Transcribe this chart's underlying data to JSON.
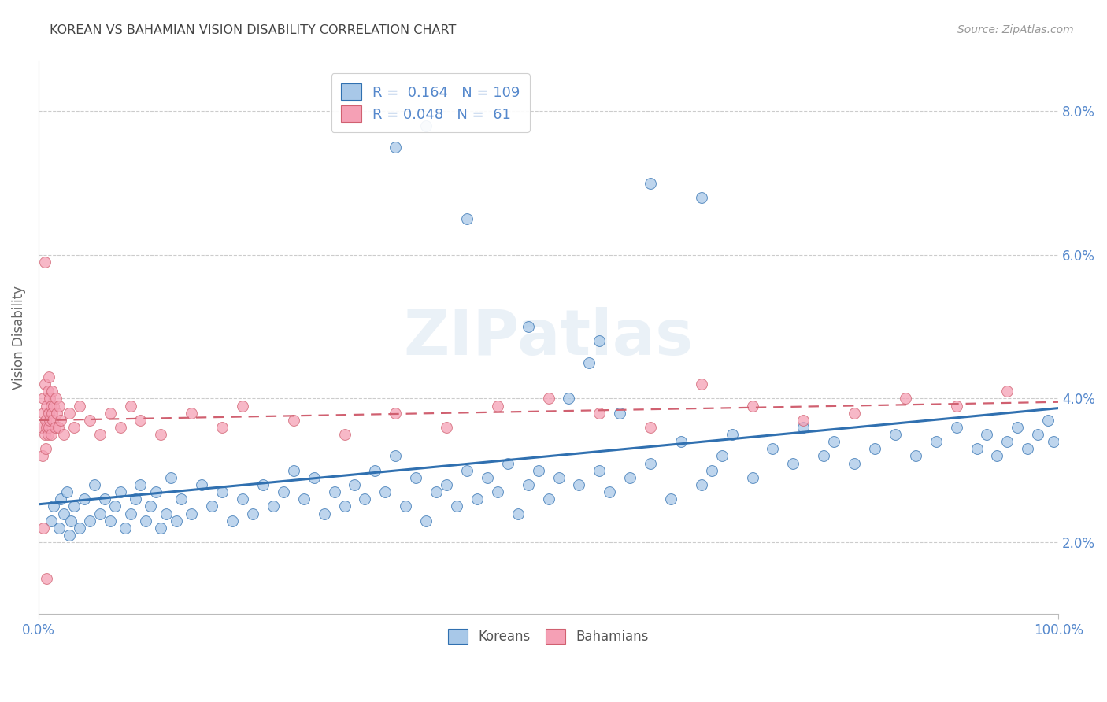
{
  "title": "KOREAN VS BAHAMIAN VISION DISABILITY CORRELATION CHART",
  "source": "Source: ZipAtlas.com",
  "ylabel": "Vision Disability",
  "xlim": [
    0.0,
    100.0
  ],
  "ylim": [
    1.0,
    8.7
  ],
  "xtick_positions": [
    0.0,
    100.0
  ],
  "xtick_labels": [
    "0.0%",
    "100.0%"
  ],
  "ytick_positions": [
    2.0,
    4.0,
    6.0,
    8.0
  ],
  "ytick_labels": [
    "2.0%",
    "4.0%",
    "6.0%",
    "8.0%"
  ],
  "korean_R": 0.164,
  "korean_N": 109,
  "bahamian_R": 0.048,
  "bahamian_N": 61,
  "korean_color": "#a8c8e8",
  "bahamian_color": "#f5a0b5",
  "korean_line_color": "#3070b0",
  "bahamian_line_color": "#d06070",
  "legend_label_korean": "Koreans",
  "legend_label_bahamian": "Bahamians",
  "background_color": "#ffffff",
  "grid_color": "#cccccc",
  "tick_color": "#5588cc",
  "title_color": "#444444",
  "ylabel_color": "#666666",
  "korean_x": [
    1.2,
    1.5,
    2.0,
    2.2,
    2.5,
    2.8,
    3.0,
    3.2,
    3.5,
    4.0,
    4.5,
    5.0,
    5.5,
    6.0,
    6.5,
    7.0,
    7.5,
    8.0,
    8.5,
    9.0,
    9.5,
    10.0,
    10.5,
    11.0,
    11.5,
    12.0,
    12.5,
    13.0,
    13.5,
    14.0,
    15.0,
    16.0,
    17.0,
    18.0,
    19.0,
    20.0,
    21.0,
    22.0,
    23.0,
    24.0,
    25.0,
    26.0,
    27.0,
    28.0,
    29.0,
    30.0,
    31.0,
    32.0,
    33.0,
    34.0,
    35.0,
    36.0,
    37.0,
    38.0,
    39.0,
    40.0,
    41.0,
    42.0,
    43.0,
    44.0,
    45.0,
    46.0,
    47.0,
    48.0,
    49.0,
    50.0,
    51.0,
    52.0,
    53.0,
    54.0,
    55.0,
    56.0,
    57.0,
    58.0,
    60.0,
    62.0,
    63.0,
    65.0,
    66.0,
    67.0,
    68.0,
    70.0,
    72.0,
    74.0,
    75.0,
    77.0,
    78.0,
    80.0,
    82.0,
    84.0,
    86.0,
    88.0,
    90.0,
    92.0,
    93.0,
    94.0,
    95.0,
    96.0,
    97.0,
    98.0,
    99.0,
    99.5,
    35.0,
    38.0,
    42.0,
    48.0,
    55.0,
    60.0,
    65.0
  ],
  "korean_y": [
    2.3,
    2.5,
    2.2,
    2.6,
    2.4,
    2.7,
    2.1,
    2.3,
    2.5,
    2.2,
    2.6,
    2.3,
    2.8,
    2.4,
    2.6,
    2.3,
    2.5,
    2.7,
    2.2,
    2.4,
    2.6,
    2.8,
    2.3,
    2.5,
    2.7,
    2.2,
    2.4,
    2.9,
    2.3,
    2.6,
    2.4,
    2.8,
    2.5,
    2.7,
    2.3,
    2.6,
    2.4,
    2.8,
    2.5,
    2.7,
    3.0,
    2.6,
    2.9,
    2.4,
    2.7,
    2.5,
    2.8,
    2.6,
    3.0,
    2.7,
    3.2,
    2.5,
    2.9,
    2.3,
    2.7,
    2.8,
    2.5,
    3.0,
    2.6,
    2.9,
    2.7,
    3.1,
    2.4,
    2.8,
    3.0,
    2.6,
    2.9,
    4.0,
    2.8,
    4.5,
    3.0,
    2.7,
    3.8,
    2.9,
    3.1,
    2.6,
    3.4,
    2.8,
    3.0,
    3.2,
    3.5,
    2.9,
    3.3,
    3.1,
    3.6,
    3.2,
    3.4,
    3.1,
    3.3,
    3.5,
    3.2,
    3.4,
    3.6,
    3.3,
    3.5,
    3.2,
    3.4,
    3.6,
    3.3,
    3.5,
    3.7,
    3.4,
    7.5,
    7.8,
    6.5,
    5.0,
    4.8,
    7.0,
    6.8
  ],
  "bahamian_x": [
    0.3,
    0.4,
    0.5,
    0.5,
    0.6,
    0.6,
    0.7,
    0.7,
    0.8,
    0.8,
    0.9,
    0.9,
    1.0,
    1.0,
    1.0,
    1.1,
    1.1,
    1.2,
    1.2,
    1.3,
    1.3,
    1.4,
    1.5,
    1.6,
    1.7,
    1.8,
    1.9,
    2.0,
    2.2,
    2.5,
    3.0,
    3.5,
    4.0,
    5.0,
    6.0,
    7.0,
    8.0,
    9.0,
    10.0,
    12.0,
    15.0,
    18.0,
    20.0,
    25.0,
    30.0,
    35.0,
    40.0,
    45.0,
    50.0,
    55.0,
    60.0,
    65.0,
    70.0,
    75.0,
    80.0,
    85.0,
    90.0,
    95.0,
    0.5,
    0.6,
    0.8
  ],
  "bahamian_y": [
    3.6,
    3.2,
    3.8,
    4.0,
    3.5,
    4.2,
    3.7,
    3.3,
    3.9,
    3.6,
    4.1,
    3.5,
    3.8,
    4.3,
    3.6,
    4.0,
    3.7,
    3.9,
    3.5,
    3.8,
    4.1,
    3.7,
    3.9,
    3.6,
    4.0,
    3.8,
    3.6,
    3.9,
    3.7,
    3.5,
    3.8,
    3.6,
    3.9,
    3.7,
    3.5,
    3.8,
    3.6,
    3.9,
    3.7,
    3.5,
    3.8,
    3.6,
    3.9,
    3.7,
    3.5,
    3.8,
    3.6,
    3.9,
    4.0,
    3.8,
    3.6,
    4.2,
    3.9,
    3.7,
    3.8,
    4.0,
    3.9,
    4.1,
    2.2,
    5.9,
    1.5
  ]
}
